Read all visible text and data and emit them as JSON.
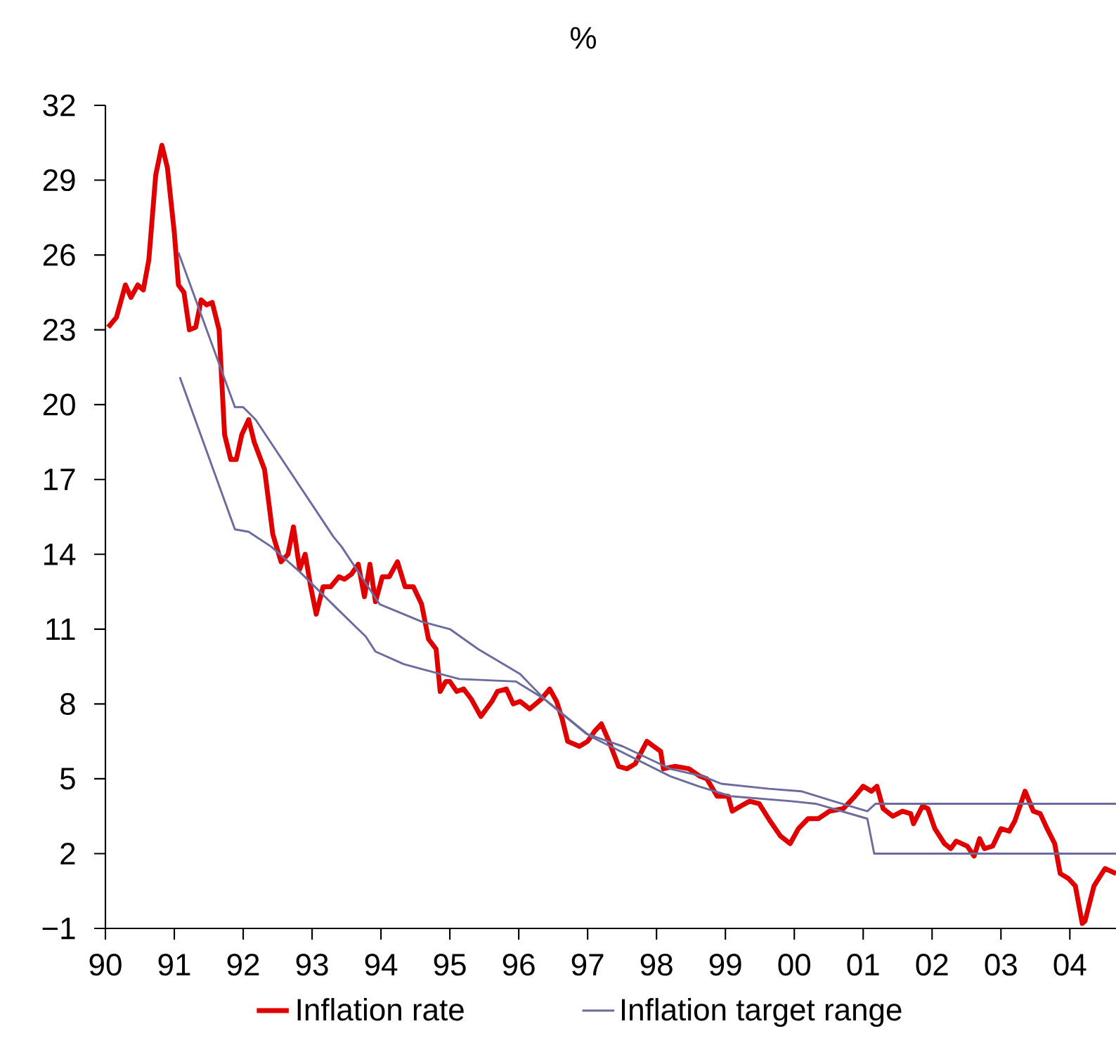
{
  "chart_data": {
    "type": "line",
    "title": "%",
    "xlim": [
      1990,
      2004.67
    ],
    "ylim": [
      -1,
      32
    ],
    "xticks": [
      {
        "value": 1990,
        "label": "90"
      },
      {
        "value": 1991,
        "label": "91"
      },
      {
        "value": 1992,
        "label": "92"
      },
      {
        "value": 1993,
        "label": "93"
      },
      {
        "value": 1994,
        "label": "94"
      },
      {
        "value": 1995,
        "label": "95"
      },
      {
        "value": 1996,
        "label": "96"
      },
      {
        "value": 1997,
        "label": "97"
      },
      {
        "value": 1998,
        "label": "98"
      },
      {
        "value": 1999,
        "label": "99"
      },
      {
        "value": 2000,
        "label": "00"
      },
      {
        "value": 2001,
        "label": "01"
      },
      {
        "value": 2002,
        "label": "02"
      },
      {
        "value": 2003,
        "label": "03"
      },
      {
        "value": 2004,
        "label": "04"
      }
    ],
    "yticks": [
      {
        "value": -1,
        "label": "−1"
      },
      2,
      5,
      8,
      11,
      14,
      17,
      20,
      23,
      26,
      29,
      32
    ],
    "legend": "bottom",
    "grid": false,
    "marker": "none",
    "series": [
      {
        "name": "Inflation rate",
        "color": "#e00000",
        "x": [
          1990.04,
          1990.16,
          1990.29,
          1990.37,
          1990.47,
          1990.55,
          1990.63,
          1990.73,
          1990.82,
          1990.9,
          1991.0,
          1991.06,
          1991.14,
          1991.22,
          1991.31,
          1991.39,
          1991.47,
          1991.55,
          1991.65,
          1991.73,
          1991.82,
          1991.9,
          1991.98,
          1992.08,
          1992.16,
          1992.31,
          1992.43,
          1992.55,
          1992.65,
          1992.73,
          1992.82,
          1992.9,
          1992.98,
          1993.06,
          1993.16,
          1993.27,
          1993.39,
          1993.47,
          1993.57,
          1993.67,
          1993.76,
          1993.84,
          1993.92,
          1994.02,
          1994.12,
          1994.24,
          1994.35,
          1994.47,
          1994.59,
          1994.69,
          1994.8,
          1994.86,
          1994.94,
          1995.0,
          1995.1,
          1995.2,
          1995.31,
          1995.45,
          1995.61,
          1995.69,
          1995.82,
          1995.92,
          1996.02,
          1996.16,
          1996.33,
          1996.45,
          1996.55,
          1996.63,
          1996.71,
          1996.88,
          1997.0,
          1997.1,
          1997.2,
          1997.31,
          1997.45,
          1997.57,
          1997.69,
          1997.86,
          1997.96,
          1998.06,
          1998.1,
          1998.27,
          1998.47,
          1998.63,
          1998.73,
          1998.88,
          1999.04,
          1999.1,
          1999.22,
          1999.35,
          1999.49,
          1999.65,
          1999.8,
          1999.94,
          2000.06,
          2000.2,
          2000.35,
          2000.51,
          2000.71,
          2000.88,
          2001.0,
          2001.12,
          2001.2,
          2001.29,
          2001.43,
          2001.57,
          2001.69,
          2001.73,
          2001.86,
          2001.94,
          2002.04,
          2002.18,
          2002.27,
          2002.35,
          2002.51,
          2002.61,
          2002.69,
          2002.76,
          2002.88,
          2003.0,
          2003.12,
          2003.2,
          2003.35,
          2003.47,
          2003.57,
          2003.67,
          2003.78,
          2003.86,
          2003.98,
          2004.08,
          2004.18,
          2004.22,
          2004.35,
          2004.51,
          2004.67
        ],
        "values": [
          23.1,
          23.5,
          24.8,
          24.3,
          24.8,
          24.6,
          25.8,
          29.2,
          30.4,
          29.5,
          26.9,
          24.8,
          24.5,
          23.0,
          23.1,
          24.2,
          24.0,
          24.1,
          23.0,
          18.8,
          17.8,
          17.8,
          18.8,
          19.4,
          18.5,
          17.4,
          14.8,
          13.7,
          14.0,
          15.1,
          13.4,
          14.0,
          12.7,
          11.6,
          12.7,
          12.7,
          13.1,
          13.0,
          13.2,
          13.6,
          12.3,
          13.6,
          12.1,
          13.1,
          13.1,
          13.7,
          12.7,
          12.7,
          12.0,
          10.6,
          10.2,
          8.5,
          8.9,
          8.9,
          8.5,
          8.6,
          8.2,
          7.5,
          8.1,
          8.5,
          8.6,
          8.0,
          8.1,
          7.8,
          8.2,
          8.6,
          8.1,
          7.4,
          6.5,
          6.3,
          6.5,
          6.9,
          7.2,
          6.5,
          5.5,
          5.4,
          5.6,
          6.5,
          6.3,
          6.1,
          5.4,
          5.5,
          5.4,
          5.1,
          5.0,
          4.3,
          4.3,
          3.7,
          3.9,
          4.1,
          4.0,
          3.3,
          2.7,
          2.4,
          3.0,
          3.4,
          3.4,
          3.7,
          3.8,
          4.3,
          4.7,
          4.5,
          4.7,
          3.8,
          3.5,
          3.7,
          3.6,
          3.2,
          3.9,
          3.8,
          3.0,
          2.4,
          2.2,
          2.5,
          2.3,
          1.9,
          2.6,
          2.2,
          2.3,
          3.0,
          2.9,
          3.3,
          4.5,
          3.7,
          3.6,
          3.0,
          2.4,
          1.2,
          1.0,
          0.7,
          -0.8,
          -0.7,
          0.7,
          1.4,
          1.2
        ]
      },
      {
        "name": "Inflation target range",
        "color": "#6b6b9e",
        "x": [
          1991.06,
          1991.88,
          1992.0,
          1992.18,
          1993.31,
          1993.43,
          1993.98,
          1994.59,
          1995.0,
          1995.41,
          1996.02,
          1996.37,
          1996.98,
          1997.51,
          1998.2,
          1998.67,
          1998.94,
          1999.63,
          2000.1,
          2000.57,
          2001.06,
          2001.18,
          2004.67
        ],
        "values": [
          26.1,
          19.9,
          19.9,
          19.4,
          14.7,
          14.3,
          12.0,
          11.3,
          11.0,
          10.2,
          9.2,
          8.2,
          6.8,
          6.3,
          5.4,
          5.1,
          4.8,
          4.6,
          4.5,
          4.1,
          3.7,
          4.0,
          4.0
        ]
      },
      {
        "color": "#6b6b9e",
        "x": [
          1991.08,
          1991.88,
          1992.08,
          1992.41,
          1992.82,
          1993.37,
          1993.78,
          1993.92,
          1994.33,
          1994.59,
          1995.14,
          1995.96,
          1996.37,
          1997.04,
          1998.2,
          1998.61,
          1999.08,
          1999.96,
          2000.31,
          2001.06,
          2001.16,
          2004.67
        ],
        "values": [
          21.1,
          15.0,
          14.9,
          14.3,
          13.3,
          11.8,
          10.7,
          10.1,
          9.6,
          9.4,
          9.0,
          8.9,
          8.2,
          6.7,
          5.1,
          4.7,
          4.3,
          4.1,
          4.0,
          3.4,
          2.0,
          2.0
        ]
      }
    ]
  }
}
